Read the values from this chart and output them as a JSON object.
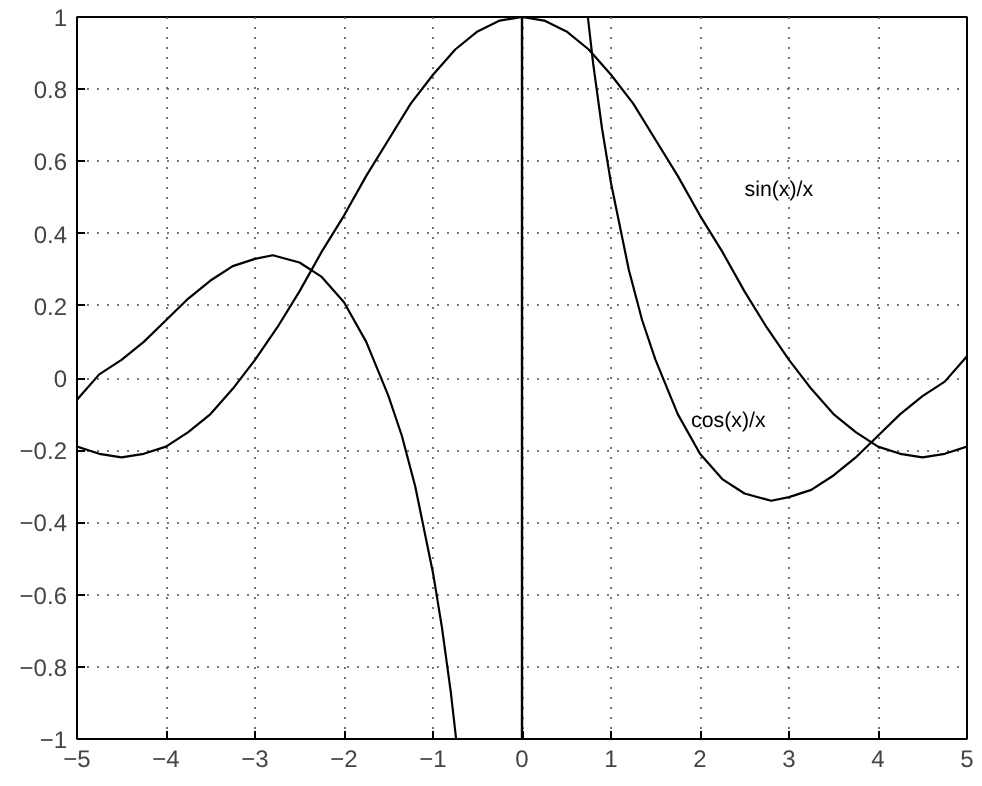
{
  "chart_data": {
    "type": "line",
    "series": [
      {
        "name": "sin(x)/x",
        "color": "#000000",
        "x": [
          -5,
          -4.75,
          -4.5,
          -4.25,
          -4,
          -3.75,
          -3.5,
          -3.25,
          -3,
          -2.75,
          -2.5,
          -2.25,
          -2,
          -1.75,
          -1.5,
          -1.25,
          -1,
          -0.75,
          -0.5,
          -0.25,
          0,
          0.25,
          0.5,
          0.75,
          1,
          1.25,
          1.5,
          1.75,
          2,
          2.25,
          2.5,
          2.75,
          3,
          3.25,
          3.5,
          3.75,
          4,
          4.25,
          4.5,
          4.75,
          5
        ],
        "values": [
          -0.19,
          -0.21,
          -0.22,
          -0.21,
          -0.19,
          -0.15,
          -0.1,
          -0.03,
          0.05,
          0.14,
          0.24,
          0.35,
          0.45,
          0.56,
          0.66,
          0.76,
          0.84,
          0.91,
          0.96,
          0.99,
          1,
          0.99,
          0.96,
          0.91,
          0.84,
          0.76,
          0.66,
          0.56,
          0.45,
          0.35,
          0.24,
          0.14,
          0.05,
          -0.03,
          -0.1,
          -0.15,
          -0.19,
          -0.21,
          -0.22,
          -0.21,
          -0.19
        ]
      },
      {
        "name": "cos(x)/x",
        "color": "#000000",
        "x": [
          -5,
          -4.75,
          -4.5,
          -4.25,
          -4,
          -3.75,
          -3.5,
          -3.25,
          -3,
          -2.8,
          -2.5,
          -2.25,
          -2,
          -1.75,
          -1.5,
          -1.35,
          -1.2,
          -1,
          -0.9,
          -0.8,
          -0.74,
          0,
          0.74,
          0.8,
          0.9,
          1,
          1.2,
          1.35,
          1.5,
          1.75,
          2,
          2.25,
          2.5,
          2.8,
          3,
          3.25,
          3.5,
          3.75,
          4,
          4.25,
          4.5,
          4.75,
          5
        ],
        "values": [
          -0.06,
          0.01,
          0.05,
          0.1,
          0.16,
          0.22,
          0.27,
          0.31,
          0.33,
          0.34,
          0.32,
          0.28,
          0.21,
          0.1,
          -0.05,
          -0.16,
          -0.3,
          -0.54,
          -0.69,
          -0.87,
          -1,
          null,
          1,
          0.87,
          0.69,
          0.54,
          0.3,
          0.16,
          0.05,
          -0.1,
          -0.21,
          -0.28,
          -0.32,
          -0.34,
          -0.33,
          -0.31,
          -0.27,
          -0.22,
          -0.16,
          -0.1,
          -0.05,
          -0.01,
          0.06
        ]
      }
    ],
    "xlim": [
      -5,
      5
    ],
    "ylim": [
      -1,
      1
    ],
    "xticks": [
      {
        "value": -5,
        "label": "−5"
      },
      {
        "value": -4,
        "label": "−4"
      },
      {
        "value": -3,
        "label": "−3"
      },
      {
        "value": -2,
        "label": "−2"
      },
      {
        "value": -1,
        "label": "−1"
      },
      0,
      1,
      2,
      3,
      4,
      5
    ],
    "yticks": [
      {
        "value": -1,
        "label": "−1"
      },
      {
        "value": -0.8,
        "label": "−0.8"
      },
      {
        "value": -0.6,
        "label": "−0.6"
      },
      {
        "value": -0.4,
        "label": "−0.4"
      },
      {
        "value": -0.2,
        "label": "−0.2"
      },
      0,
      0.2,
      0.4,
      0.6,
      0.8,
      1
    ],
    "grid": true,
    "marker": "none",
    "line_style": "solid",
    "ref_lines": [
      {
        "axis": "x",
        "value": 0,
        "color": "#000000",
        "line_style": "solid"
      }
    ]
  }
}
